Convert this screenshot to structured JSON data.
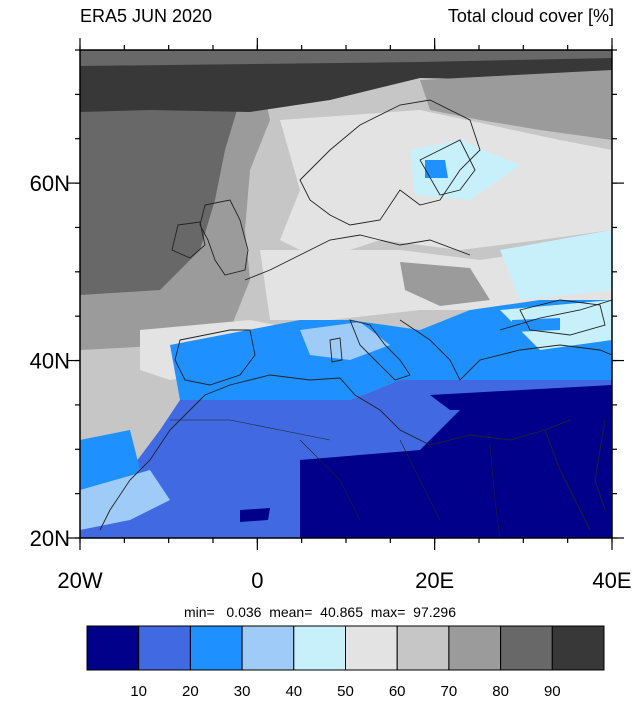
{
  "header": {
    "left_title": "ERA5 JUN 2020",
    "right_title": "Total cloud cover [%]"
  },
  "map": {
    "lon_range": [
      -20,
      40
    ],
    "lat_range": [
      20,
      75
    ],
    "x_ticks": [
      {
        "lon": -20,
        "label": "20W"
      },
      {
        "lon": 0,
        "label": "0"
      },
      {
        "lon": 20,
        "label": "20E"
      },
      {
        "lon": 40,
        "label": "40E"
      }
    ],
    "y_ticks": [
      {
        "lat": 20,
        "label": "20N"
      },
      {
        "lat": 40,
        "label": "40N"
      },
      {
        "lat": 60,
        "label": "60N"
      }
    ]
  },
  "stats": {
    "text": "min=   0.036  mean=  40.865  max=  97.296"
  },
  "colorbar": {
    "colors": [
      "#00008b",
      "#4169e1",
      "#1e90ff",
      "#9ecbf7",
      "#c8f0fb",
      "#e3e3e3",
      "#c6c6c6",
      "#9b9b9b",
      "#686868",
      "#383838"
    ],
    "labels": [
      "10",
      "20",
      "30",
      "40",
      "50",
      "60",
      "70",
      "80",
      "90"
    ]
  }
}
